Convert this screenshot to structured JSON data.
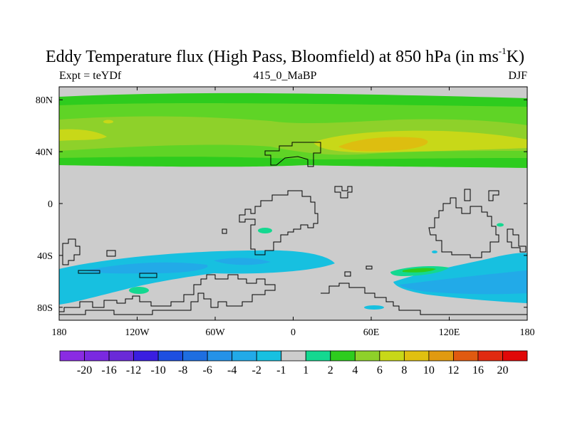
{
  "title": {
    "main": "Eddy Temperature flux (High Pass, Bloomfield) at 850 hPa (in ms",
    "superscript": "-1",
    "unit_tail": "K)"
  },
  "subtitles": {
    "left": "Expt = teYDf",
    "center": "415_0_MaBP",
    "right": "DJF"
  },
  "map_data": {
    "projection": "cylindrical-equidistant",
    "lon_range": [
      -180,
      180
    ],
    "lat_range": [
      -90,
      90
    ],
    "x_ticks": [
      {
        "value": -180,
        "label": "180"
      },
      {
        "value": -120,
        "label": "120W"
      },
      {
        "value": -60,
        "label": "60W"
      },
      {
        "value": 0,
        "label": "0"
      },
      {
        "value": 60,
        "label": "60E"
      },
      {
        "value": 120,
        "label": "120E"
      },
      {
        "value": 180,
        "label": "180"
      }
    ],
    "y_ticks": [
      {
        "value": 80,
        "label": "80N"
      },
      {
        "value": 40,
        "label": "40N"
      },
      {
        "value": 0,
        "label": "0"
      },
      {
        "value": -40,
        "label": "40S"
      },
      {
        "value": -80,
        "label": "80S"
      }
    ],
    "background_color": "#cccccc",
    "coastline_color": "#000000"
  },
  "colorbar": {
    "labels": [
      "-20",
      "-16",
      "-12",
      "-10",
      "-8",
      "-6",
      "-4",
      "-2",
      "-1",
      "1",
      "2",
      "4",
      "6",
      "8",
      "10",
      "12",
      "16",
      "20"
    ],
    "colors": [
      "#8a2be2",
      "#7a29e0",
      "#6a2ad8",
      "#3a1ee0",
      "#1d4fe0",
      "#1e6ee0",
      "#2592e8",
      "#22aae8",
      "#17c0e0",
      "#cccccc",
      "#14d890",
      "#2ecc1e",
      "#8ed12a",
      "#c8d818",
      "#e0c010",
      "#e09a10",
      "#e05a10",
      "#e02a10",
      "#e00808"
    ]
  }
}
